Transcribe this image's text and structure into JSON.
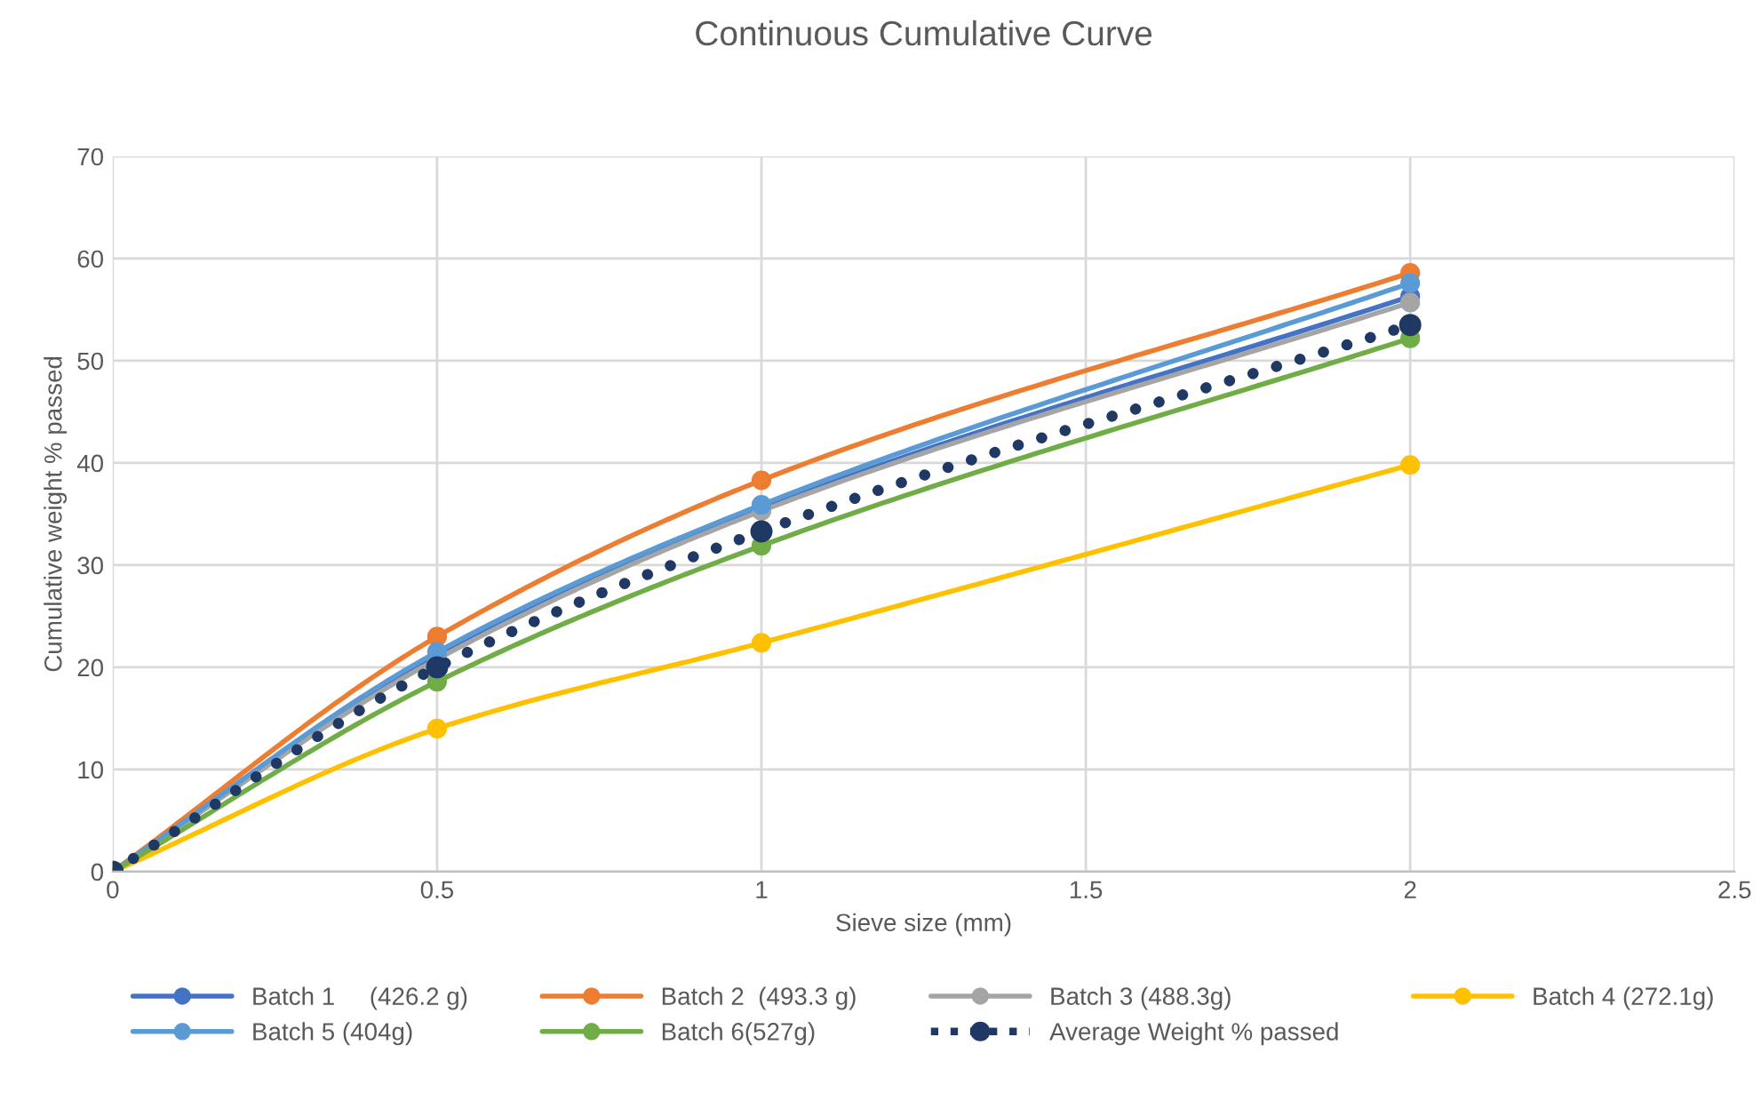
{
  "chart_data": {
    "type": "line",
    "title": "Continuous Cumulative Curve",
    "xlabel": "Sieve size (mm)",
    "ylabel": "Cumulative weight % passed",
    "x": [
      0,
      0.5,
      1,
      2
    ],
    "series": [
      {
        "name": "Batch 1     (426.2 g)",
        "color": "#4472c4",
        "values": [
          0,
          21.0,
          35.5,
          56.3
        ]
      },
      {
        "name": "Batch 2  (493.3 g)",
        "color": "#ed7d31",
        "values": [
          0,
          23.0,
          38.3,
          58.6
        ]
      },
      {
        "name": "Batch 3 (488.3g)",
        "color": "#a5a5a5",
        "values": [
          0,
          20.8,
          35.3,
          55.7
        ]
      },
      {
        "name": "Batch 4 (272.1g)",
        "color": "#ffc000",
        "values": [
          0,
          14.0,
          22.4,
          39.8
        ]
      },
      {
        "name": "Batch 5 (404g)",
        "color": "#5b9bd5",
        "values": [
          0,
          21.5,
          35.9,
          57.6
        ]
      },
      {
        "name": "Batch 6(527g)",
        "color": "#70ad47",
        "values": [
          0,
          18.6,
          31.9,
          52.2
        ]
      },
      {
        "name": "Average Weight % passed",
        "color": "#203864",
        "values": [
          0,
          20.0,
          33.3,
          53.5
        ],
        "line_style": "dotted"
      }
    ],
    "xlim": [
      0,
      2.5
    ],
    "xticks": [
      0,
      0.5,
      1,
      1.5,
      2,
      2.5
    ],
    "ylim": [
      0,
      70
    ],
    "yticks": [
      0,
      10,
      20,
      30,
      40,
      50,
      60,
      70
    ],
    "grid": true,
    "legend": "bottom",
    "marker": "circle",
    "line_style": "solid"
  }
}
